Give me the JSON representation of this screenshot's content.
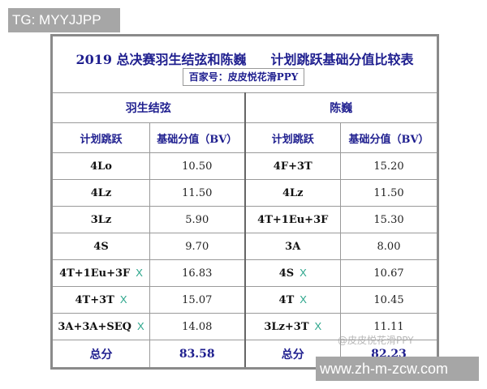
{
  "overlay_tag": "TG: MYYJJPP",
  "site_label": "www.zh-m-zcw.com",
  "stamp": "百家号：皮皮悦花滑PPY",
  "watermark": "@皮皮悦花滑PPY",
  "title_left": "2019 总决赛羽生结弦和陈巍",
  "title_right": "计划跳跃基础分值比较表",
  "skaters": [
    "羽生结弦",
    "陈巍"
  ],
  "headers": [
    "计划跳跃",
    "基础分值（BV）",
    "计划跳跃",
    "基础分值（BV）"
  ],
  "mark_symbol": "X",
  "mark_color": "#2aa58a",
  "rows": [
    {
      "a_jump": "4Lo",
      "a_x": "",
      "a_bv": "10.50",
      "b_jump": "4F+3T",
      "b_x": "",
      "b_bv": "15.20"
    },
    {
      "a_jump": "4Lz",
      "a_x": "",
      "a_bv": "11.50",
      "b_jump": "4Lz",
      "b_x": "",
      "b_bv": "11.50"
    },
    {
      "a_jump": "3Lz",
      "a_x": "",
      "a_bv": "5.90",
      "b_jump": "4T+1Eu+3F",
      "b_x": "",
      "b_bv": "15.30"
    },
    {
      "a_jump": "4S",
      "a_x": "",
      "a_bv": "9.70",
      "b_jump": "3A",
      "b_x": "",
      "b_bv": "8.00"
    },
    {
      "a_jump": "4T+1Eu+3F",
      "a_x": "X",
      "a_bv": "16.83",
      "b_jump": "4S",
      "b_x": "X",
      "b_bv": "10.67"
    },
    {
      "a_jump": "4T+3T",
      "a_x": "X",
      "a_bv": "15.07",
      "b_jump": "4T",
      "b_x": "X",
      "b_bv": "10.45"
    },
    {
      "a_jump": "3A+3A+SEQ",
      "a_x": "X",
      "a_bv": "14.08",
      "b_jump": "3Lz+3T",
      "b_x": "X",
      "b_bv": "11.11"
    }
  ],
  "total": {
    "label": "总分",
    "a": "83.58",
    "b": "82.23"
  }
}
